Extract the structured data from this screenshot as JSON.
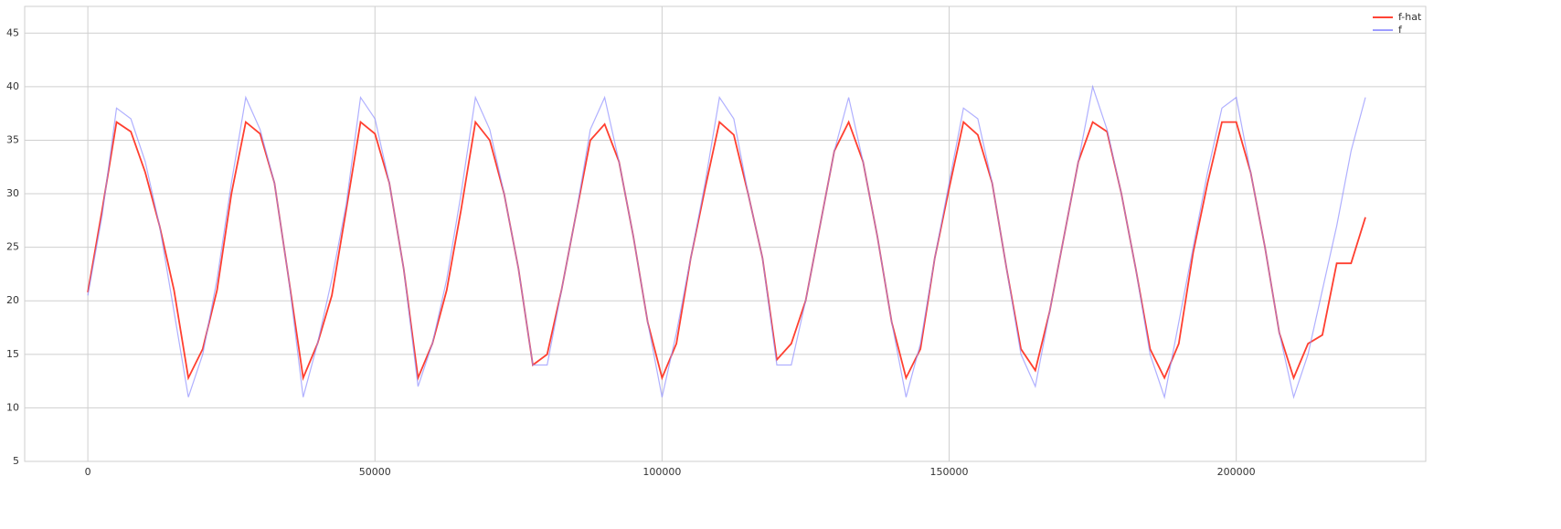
{
  "chart_data": {
    "type": "line",
    "x": [
      0,
      2500,
      5000,
      7500,
      10000,
      12500,
      15000,
      17500,
      20000,
      22500,
      25000,
      27500,
      30000,
      32500,
      35000,
      37500,
      40000,
      42500,
      45000,
      47500,
      50000,
      52500,
      55000,
      57500,
      60000,
      62500,
      65000,
      67500,
      70000,
      72500,
      75000,
      77500,
      80000,
      82500,
      85000,
      87500,
      90000,
      92500,
      95000,
      97500,
      100000,
      102500,
      105000,
      107500,
      110000,
      112500,
      115000,
      117500,
      120000,
      122500,
      125000,
      127500,
      130000,
      132500,
      135000,
      137500,
      140000,
      142500,
      145000,
      147500,
      150000,
      152500,
      155000,
      157500,
      160000,
      162500,
      165000,
      167500,
      170000,
      172500,
      175000,
      177500,
      180000,
      182500,
      185000,
      187500,
      190000,
      192500,
      195000,
      197500,
      200000,
      202500,
      205000,
      207500,
      210000,
      212500,
      215000,
      217500,
      220000,
      222500
    ],
    "series": [
      {
        "name": "f-hat",
        "color": "#ff2a1a",
        "values": [
          20.8,
          28.5,
          36.7,
          35.8,
          32,
          27,
          21,
          12.8,
          15.5,
          21,
          30,
          36.7,
          35.6,
          31,
          22,
          12.8,
          16,
          20.5,
          28.5,
          36.7,
          35.6,
          31,
          23,
          12.8,
          16,
          21,
          28.5,
          36.7,
          35,
          30,
          23,
          14,
          15,
          21,
          28,
          35,
          36.5,
          33,
          26,
          18,
          12.8,
          16,
          24,
          30.5,
          36.7,
          35.5,
          30,
          24,
          14.5,
          16,
          20,
          27,
          34,
          36.7,
          33,
          26,
          18,
          12.8,
          15.5,
          24,
          30.5,
          36.7,
          35.5,
          31,
          23,
          15.5,
          13.5,
          19,
          26,
          33,
          36.7,
          35.8,
          30,
          23,
          15.5,
          12.8,
          16,
          24.5,
          31,
          36.7,
          36.7,
          32,
          25,
          17,
          12.8,
          16,
          16.8,
          23.5,
          23.5,
          27.8
        ]
      },
      {
        "name": "f",
        "color": "#8f8fff",
        "values": [
          20.5,
          28,
          38,
          37,
          33,
          27,
          19,
          11,
          15,
          22,
          31,
          39,
          36,
          31,
          22,
          11,
          16,
          22,
          29,
          39,
          37,
          31,
          23,
          12,
          16,
          22,
          30,
          39,
          36,
          30,
          23,
          14,
          14,
          21,
          28,
          36,
          39,
          33,
          26,
          18,
          11,
          17,
          24,
          31,
          39,
          37,
          30,
          24,
          14,
          14,
          20,
          27,
          34,
          39,
          33,
          26,
          18,
          11,
          16,
          24,
          31,
          38,
          37,
          31,
          23,
          15,
          12,
          19,
          26,
          33,
          40,
          36,
          30,
          23,
          15,
          11,
          18,
          25,
          32,
          38,
          39,
          32,
          25,
          17,
          11,
          15,
          21,
          27,
          34,
          39
        ]
      }
    ],
    "xlim": [
      -11000,
      233000
    ],
    "ylim": [
      5,
      47.5
    ],
    "xticks": [
      0,
      50000,
      100000,
      150000,
      200000
    ],
    "yticks": [
      5,
      10,
      15,
      20,
      25,
      30,
      35,
      40,
      45
    ],
    "grid": true,
    "legend": "upper right"
  }
}
